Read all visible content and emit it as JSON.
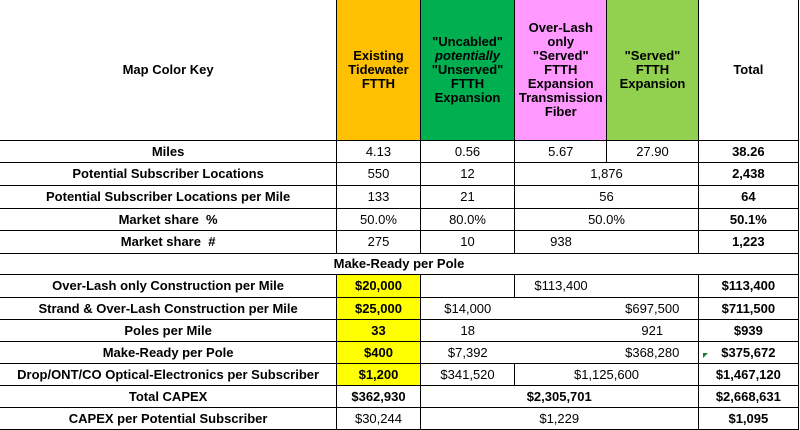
{
  "header": {
    "key_label": "Map Color Key",
    "columns": [
      {
        "lines": [
          "Existing",
          "Tidewater",
          "FTTH"
        ],
        "color": "#ffc000"
      },
      {
        "lines": [
          "\"Uncabled\"",
          "potentially",
          "\"Unserved\"",
          "FTTH",
          "Expansion"
        ],
        "italic_line": 1,
        "color": "#00b050"
      },
      {
        "lines": [
          "Over-Lash",
          "only",
          "\"Served\"",
          "FTTH",
          "Expansion",
          "Transmission",
          "Fiber"
        ],
        "color": "#ff99ff"
      },
      {
        "lines": [
          "\"Served\"",
          "FTTH",
          "Expansion"
        ],
        "color": "#92d050"
      }
    ],
    "total_label": "Total"
  },
  "rows": {
    "miles": {
      "label": "Miles",
      "c1": "4.13",
      "c2": "0.56",
      "c3": "5.67",
      "c4": "27.90",
      "total": "38.26"
    },
    "locations": {
      "label": "Potential Subscriber Locations",
      "c1": "550",
      "c2": "12",
      "c34": "1,876",
      "total": "2,438"
    },
    "loc_per_mile": {
      "label": "Potential Subscriber Locations per Mile",
      "c1": "133",
      "c2": "21",
      "c34": "56",
      "total": "64"
    },
    "share_pct": {
      "label": "Market share  %",
      "c1": "50.0%",
      "c2": "80.0%",
      "c34": "50.0%",
      "total": "50.1%"
    },
    "share_num": {
      "label": "Market share  #",
      "c1": "275",
      "c2": "10",
      "c3": "938",
      "total": "1,223"
    }
  },
  "section_label": "Make-Ready per Pole",
  "costs": {
    "overlash": {
      "label": "Over-Lash only Construction per Mile",
      "c1": "$20,000",
      "c3": "$113,400",
      "total": "$113,400"
    },
    "strand": {
      "label": "Strand & Over-Lash Construction per Mile",
      "c1": "$25,000",
      "c2": "$14,000",
      "c4": "$697,500",
      "total": "$711,500"
    },
    "poles": {
      "label": "Poles per Mile",
      "c1": "33",
      "c2": "18",
      "c4": "921",
      "total": "$939"
    },
    "makeready": {
      "label": "Make-Ready per Pole",
      "c1": "$400",
      "c2": "$7,392",
      "c4": "$368,280",
      "total": "$375,672"
    },
    "drop": {
      "label": "Drop/ONT/CO Optical-Electronics per Subscriber",
      "c1": "$1,200",
      "c2": "$341,520",
      "c34": "$1,125,600",
      "total": "$1,467,120"
    },
    "capex": {
      "label": "Total CAPEX",
      "c1": "$362,930",
      "c234": "$2,305,701",
      "total": "$2,668,631"
    },
    "capex_per": {
      "label": "CAPEX per Potential Subscriber",
      "c1": "$30,244",
      "c234": "$1,229",
      "total": "$1,095"
    }
  }
}
